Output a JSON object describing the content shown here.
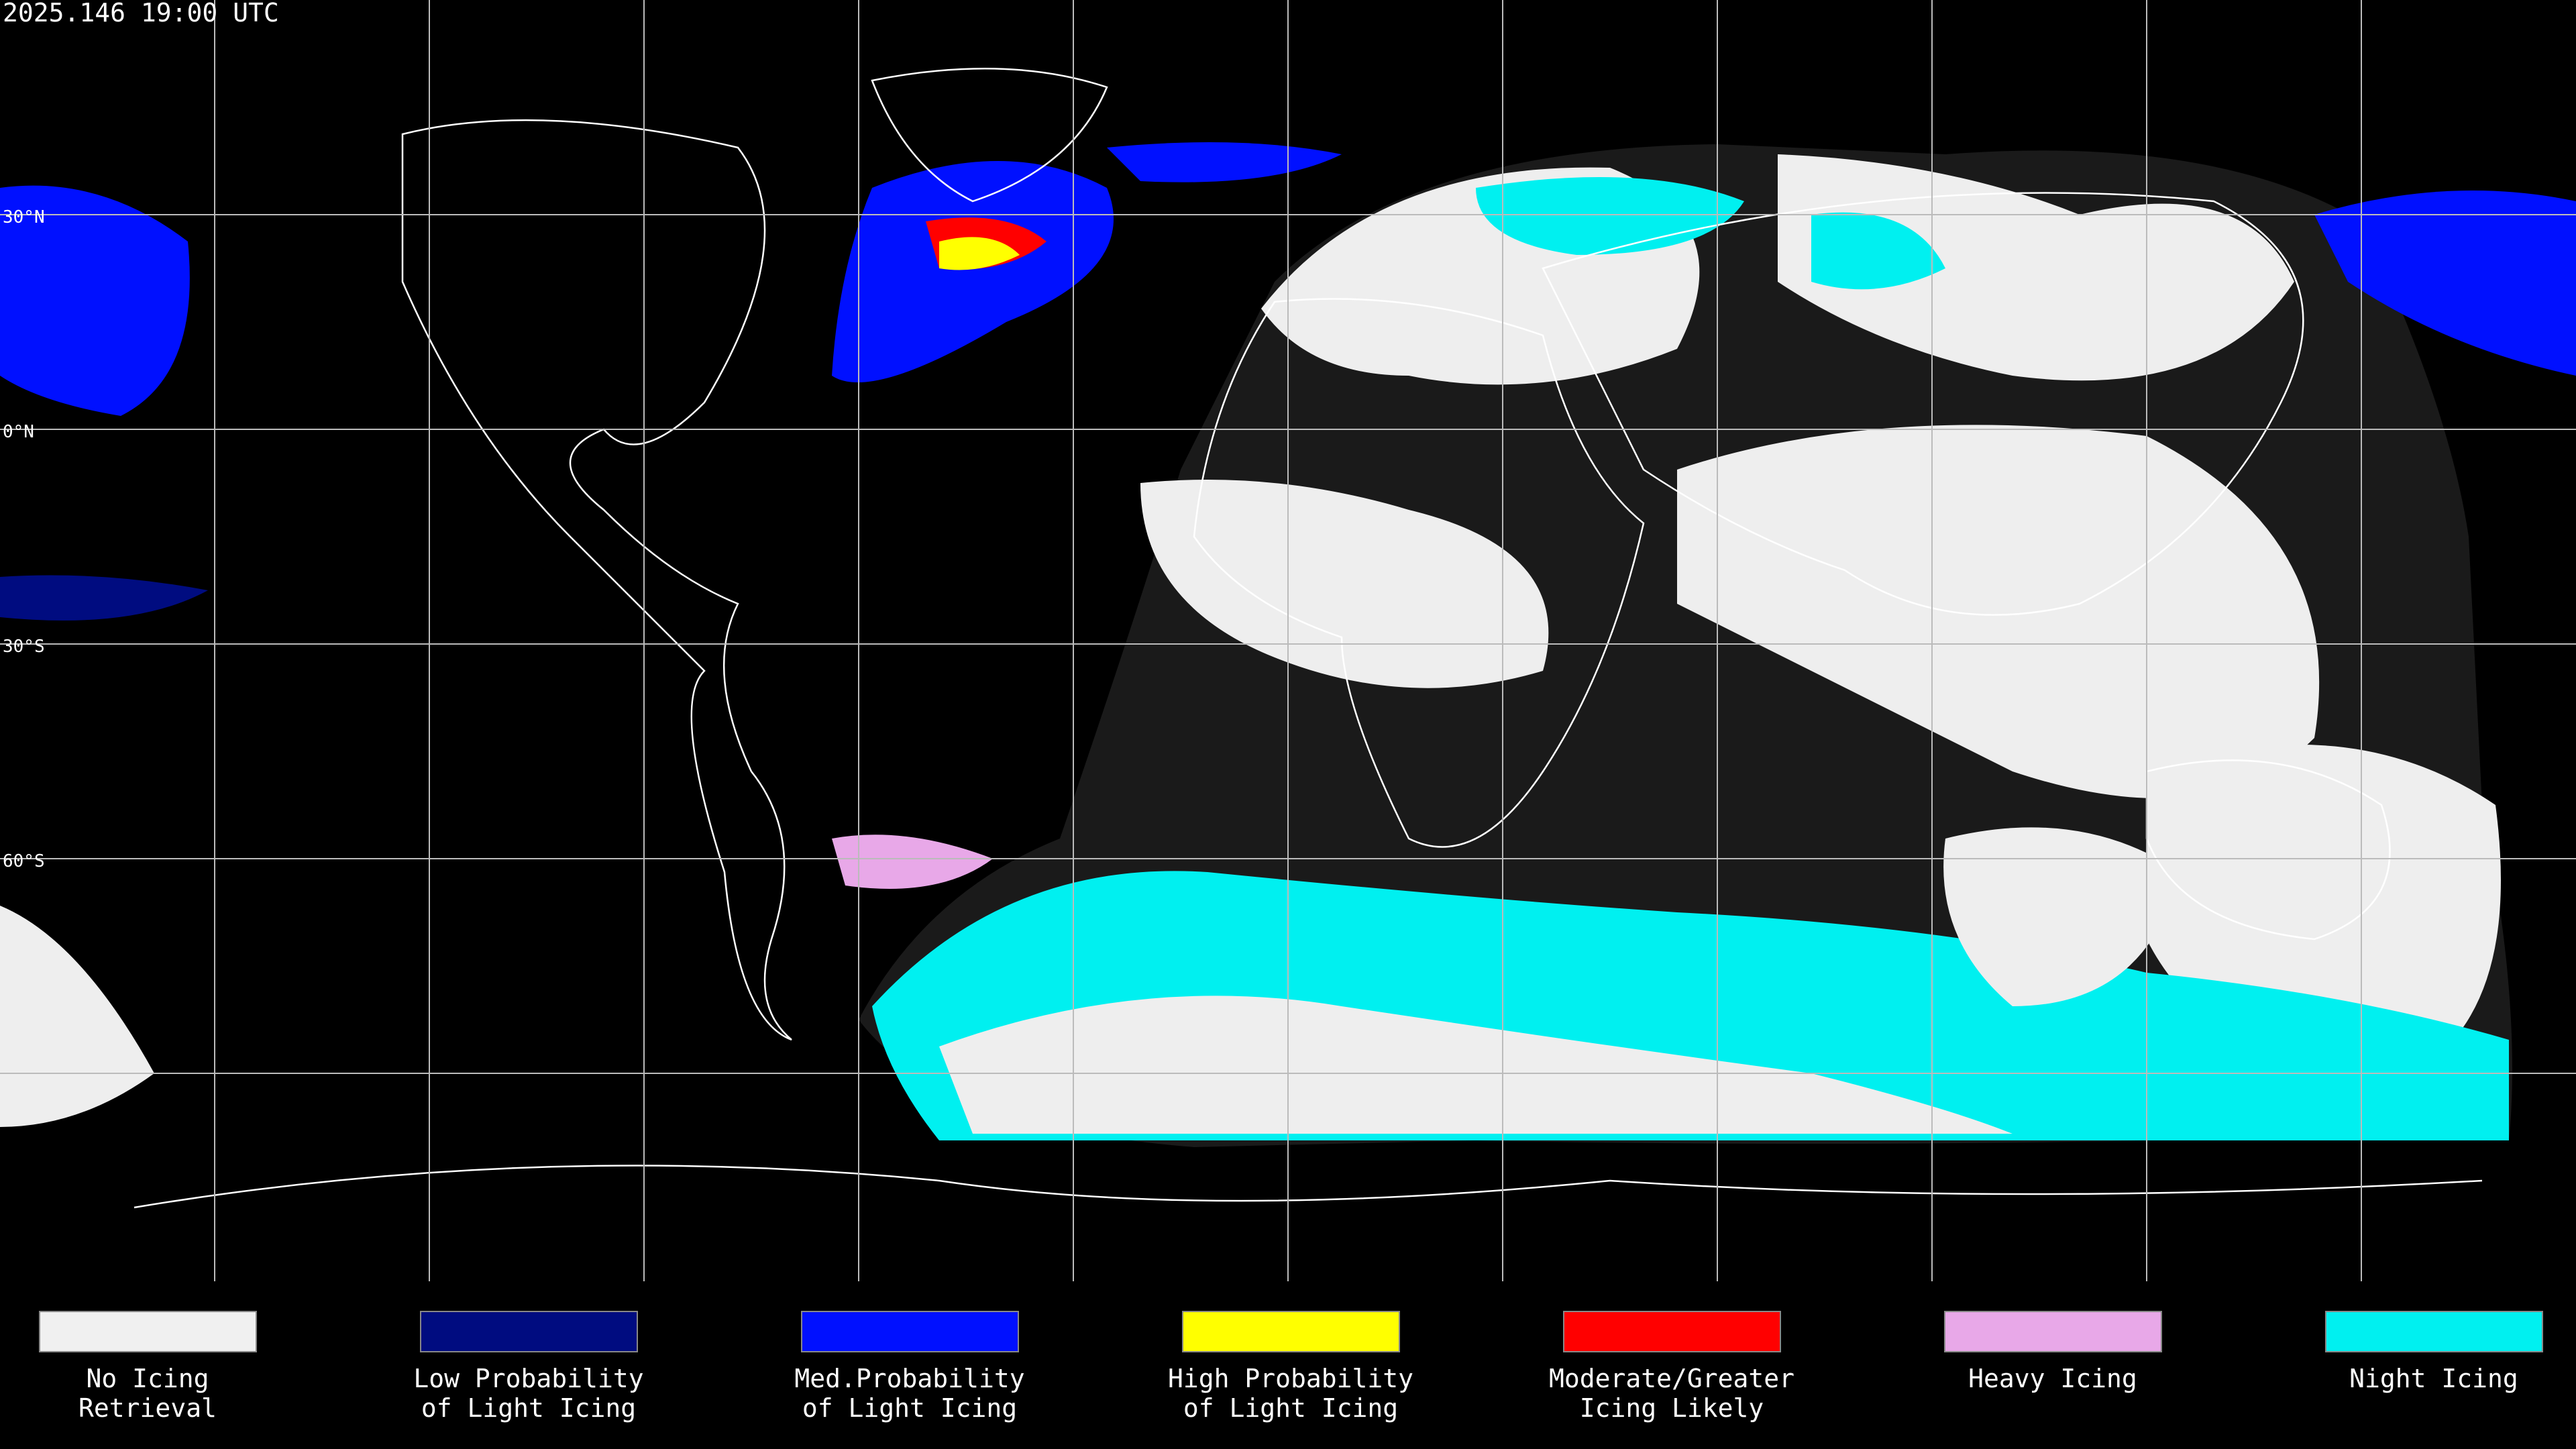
{
  "timestamp": "2025.146 19:00 UTC",
  "lat_labels": [
    "30°N",
    "0°N",
    "30°S",
    "60°S"
  ],
  "legend": [
    {
      "lines": [
        "No Icing",
        "Retrieval"
      ],
      "color": "#f0f0f0"
    },
    {
      "lines": [
        "Low Probability",
        "of Light Icing"
      ],
      "color": "#000c80"
    },
    {
      "lines": [
        "Med.Probability",
        "of Light Icing"
      ],
      "color": "#0010ff"
    },
    {
      "lines": [
        "High Probability",
        "of Light Icing"
      ],
      "color": "#ffff00"
    },
    {
      "lines": [
        "Moderate/Greater",
        "Icing Likely"
      ],
      "color": "#ff0000"
    },
    {
      "lines": [
        "Heavy Icing"
      ],
      "color": "#e8a8e8"
    },
    {
      "lines": [
        "Night Icing"
      ],
      "color": "#00f0f0"
    }
  ]
}
